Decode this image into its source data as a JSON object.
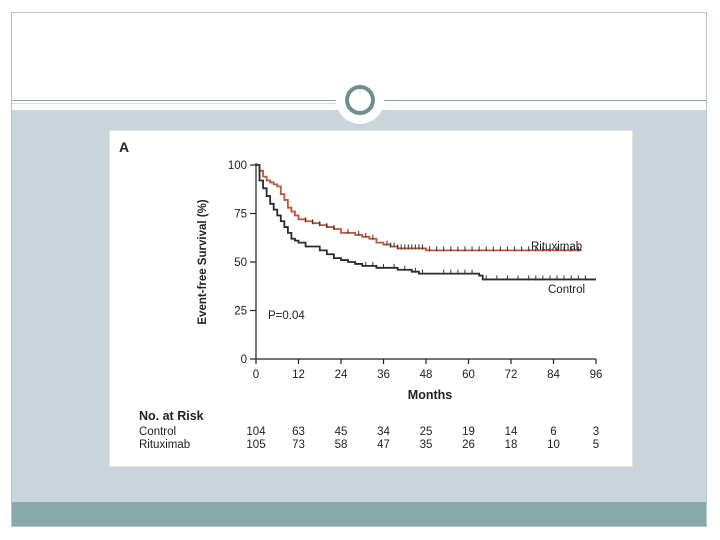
{
  "chart_data": {
    "type": "line",
    "panel_label": "A",
    "title": "",
    "xlabel": "Months",
    "ylabel": "Event-free Survival (%)",
    "xlim": [
      0,
      96
    ],
    "ylim": [
      0,
      100
    ],
    "x_ticks": [
      0,
      12,
      24,
      36,
      48,
      60,
      72,
      84,
      96
    ],
    "y_ticks": [
      0,
      25,
      50,
      75,
      100
    ],
    "annotation": "P=0.04",
    "series": [
      {
        "name": "Rituximab",
        "color": "#c0533a",
        "points": [
          [
            0,
            100
          ],
          [
            1,
            97
          ],
          [
            2,
            94
          ],
          [
            3,
            92
          ],
          [
            4,
            91
          ],
          [
            5,
            90
          ],
          [
            6,
            89
          ],
          [
            7,
            85
          ],
          [
            8,
            82
          ],
          [
            9,
            78
          ],
          [
            10,
            76
          ],
          [
            11,
            74
          ],
          [
            12,
            72
          ],
          [
            14,
            71
          ],
          [
            16,
            70
          ],
          [
            18,
            69
          ],
          [
            20,
            68
          ],
          [
            22,
            67
          ],
          [
            24,
            65
          ],
          [
            26,
            65
          ],
          [
            28,
            64
          ],
          [
            30,
            63
          ],
          [
            32,
            62
          ],
          [
            34,
            60
          ],
          [
            36,
            59
          ],
          [
            38,
            58
          ],
          [
            40,
            57
          ],
          [
            44,
            57
          ],
          [
            48,
            56
          ],
          [
            52,
            56
          ],
          [
            60,
            56
          ],
          [
            70,
            56
          ],
          [
            80,
            56
          ],
          [
            92,
            56
          ]
        ],
        "censor_marks": [
          14,
          16,
          18,
          20,
          22,
          26,
          29,
          31,
          33,
          37,
          38,
          39,
          40,
          41,
          42,
          43,
          44,
          45,
          46,
          47,
          49,
          51,
          53,
          55,
          57,
          59,
          61,
          63,
          65,
          67,
          69,
          71,
          73,
          75,
          77,
          79,
          81,
          83,
          85,
          87,
          89,
          91
        ]
      },
      {
        "name": "Control",
        "color": "#2b2b2b",
        "points": [
          [
            0,
            100
          ],
          [
            1,
            92
          ],
          [
            2,
            88
          ],
          [
            3,
            84
          ],
          [
            4,
            80
          ],
          [
            5,
            77
          ],
          [
            6,
            74
          ],
          [
            7,
            71
          ],
          [
            8,
            68
          ],
          [
            9,
            65
          ],
          [
            10,
            62
          ],
          [
            11,
            61
          ],
          [
            12,
            60
          ],
          [
            14,
            58
          ],
          [
            16,
            58
          ],
          [
            18,
            56
          ],
          [
            20,
            54
          ],
          [
            22,
            52
          ],
          [
            24,
            51
          ],
          [
            26,
            50
          ],
          [
            28,
            49
          ],
          [
            30,
            48
          ],
          [
            32,
            48
          ],
          [
            34,
            47
          ],
          [
            36,
            47
          ],
          [
            40,
            46
          ],
          [
            44,
            45
          ],
          [
            46,
            44
          ],
          [
            50,
            44
          ],
          [
            56,
            44
          ],
          [
            63,
            43
          ],
          [
            64,
            41
          ],
          [
            72,
            41
          ],
          [
            80,
            41
          ],
          [
            96,
            41
          ]
        ],
        "censor_marks": [
          31,
          33,
          36,
          39,
          42,
          45,
          47,
          53,
          55,
          57,
          59,
          61,
          65,
          68,
          71,
          74,
          77,
          79,
          81,
          83,
          85,
          87,
          89,
          91,
          93
        ]
      }
    ],
    "risk_table": {
      "header": "No. at Risk",
      "rows": [
        {
          "label": "Control",
          "values": [
            "104",
            "63",
            "45",
            "34",
            "25",
            "19",
            "14",
            "6",
            "3"
          ]
        },
        {
          "label": "Rituximab",
          "values": [
            "105",
            "73",
            "58",
            "47",
            "35",
            "26",
            "18",
            "10",
            "5"
          ]
        }
      ]
    }
  }
}
